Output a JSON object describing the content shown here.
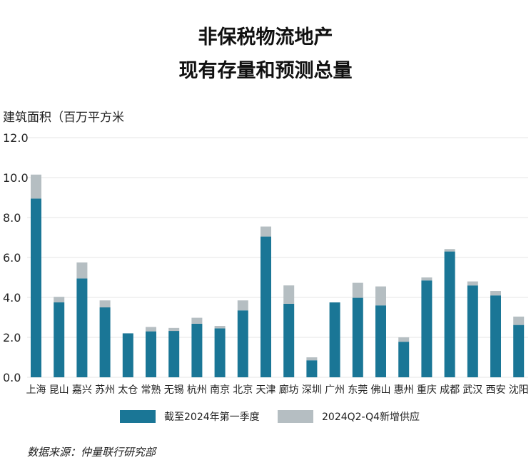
{
  "title_line1": "非保税物流地产",
  "title_line2": "现有存量和预测总量",
  "source": "数据来源：仲量联行研究部",
  "chart_data": {
    "type": "bar",
    "stacked": true,
    "ylabel": "建筑面积（百万平方米",
    "ylim": [
      0,
      12
    ],
    "yticks": [
      "0.0",
      "2.0",
      "4.0",
      "6.0",
      "8.0",
      "10.0",
      "12.0"
    ],
    "grid": true,
    "legend_placement": "bottom",
    "categories": [
      "上海",
      "昆山",
      "嘉兴",
      "苏州",
      "太仓",
      "常熟",
      "无锡",
      "杭州",
      "南京",
      "北京",
      "天津",
      "廊坊",
      "深圳",
      "广州",
      "东莞",
      "佛山",
      "惠州",
      "重庆",
      "成都",
      "武汉",
      "西安",
      "沈阳"
    ],
    "series": [
      {
        "name": "截至2024年第一季度",
        "color": "#1a7696",
        "values": [
          8.95,
          3.75,
          4.95,
          3.5,
          2.2,
          2.3,
          2.32,
          2.68,
          2.45,
          3.35,
          7.05,
          3.68,
          0.85,
          3.75,
          3.98,
          3.6,
          1.78,
          4.85,
          6.3,
          4.6,
          4.1,
          2.62
        ]
      },
      {
        "name": "2024Q2-Q4新增供应",
        "color": "#b5bec2",
        "values": [
          1.2,
          0.28,
          0.8,
          0.35,
          0.0,
          0.22,
          0.15,
          0.3,
          0.12,
          0.5,
          0.5,
          0.92,
          0.15,
          0.0,
          0.75,
          0.95,
          0.22,
          0.15,
          0.12,
          0.2,
          0.22,
          0.42
        ]
      }
    ]
  }
}
